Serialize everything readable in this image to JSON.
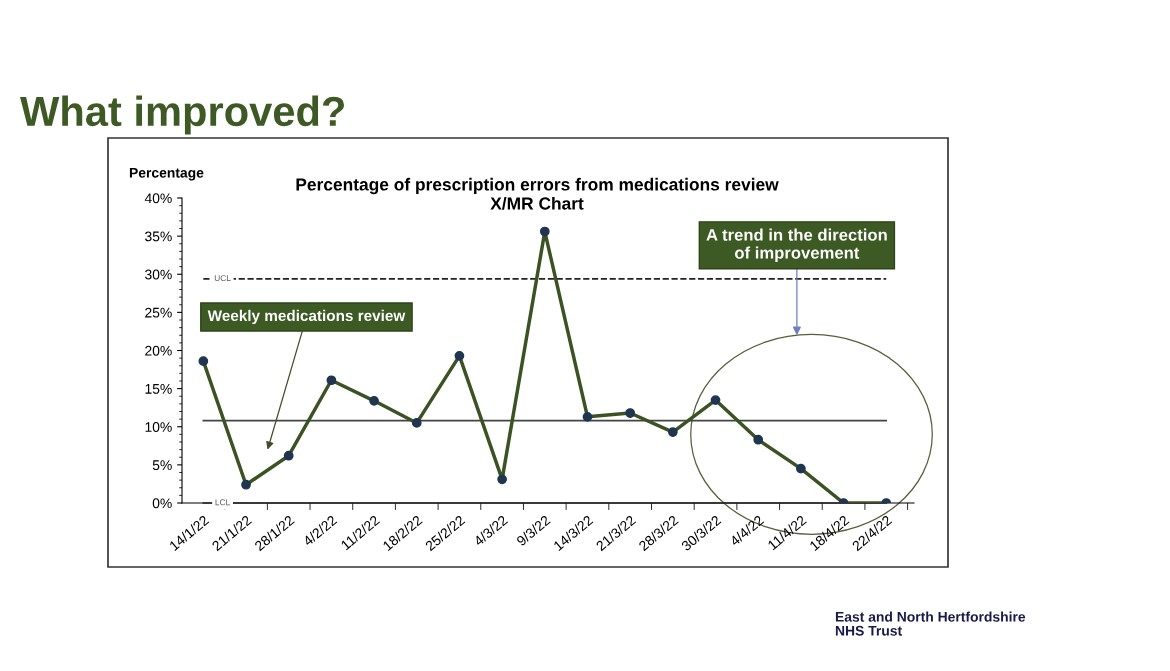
{
  "chart_data": {
    "type": "line",
    "title": "Percentage of prescription errors from medications review",
    "subtitle": "X/MR Chart",
    "ylabel": "Percentage",
    "categories": [
      "14/1/22",
      "21/1/22",
      "28/1/22",
      "4/2/22",
      "11/2/22",
      "18/2/22",
      "25/2/22",
      "4/3/22",
      "9/3/22",
      "14/3/22",
      "21/3/22",
      "28/3/22",
      "30/3/22",
      "4/4/22",
      "11/4/22",
      "18/4/22",
      "22/4/22"
    ],
    "series": [
      {
        "color": "#3b5323",
        "values": [
          18.6,
          2.4,
          6.2,
          16.1,
          13.4,
          10.5,
          19.3,
          3.1,
          35.6,
          11.3,
          11.8,
          9.3,
          13.5,
          8.3,
          4.5,
          0,
          0
        ]
      }
    ],
    "marker": "circle",
    "line_style": "solid",
    "ylim": [
      0,
      40
    ],
    "yticks": [
      {
        "value": 0,
        "label": "0%"
      },
      {
        "value": 5,
        "label": "5%"
      },
      {
        "value": 10,
        "label": "10%"
      },
      {
        "value": 15,
        "label": "15%"
      },
      {
        "value": 20,
        "label": "20%"
      },
      {
        "value": 25,
        "label": "25%"
      },
      {
        "value": 30,
        "label": "30%"
      },
      {
        "value": 35,
        "label": "35%"
      },
      {
        "value": 40,
        "label": "40%"
      }
    ],
    "ref_lines": [
      {
        "axis": "y",
        "value": 29.4,
        "label": "UCL",
        "line_style": "dashed",
        "color": "#222222"
      },
      {
        "axis": "y",
        "value": 10.8,
        "label": null,
        "line_style": "solid",
        "color": "#444444"
      },
      {
        "axis": "y",
        "value": 0,
        "label": "LCL",
        "line_style": "solid",
        "color": "#444444"
      }
    ],
    "annotations": [
      "What improved?",
      "Weekly medications review",
      "A trend in the direction\nof improvement",
      "East and North Hertfordshire\nNHS Trust"
    ],
    "grid": false,
    "legend": false
  }
}
